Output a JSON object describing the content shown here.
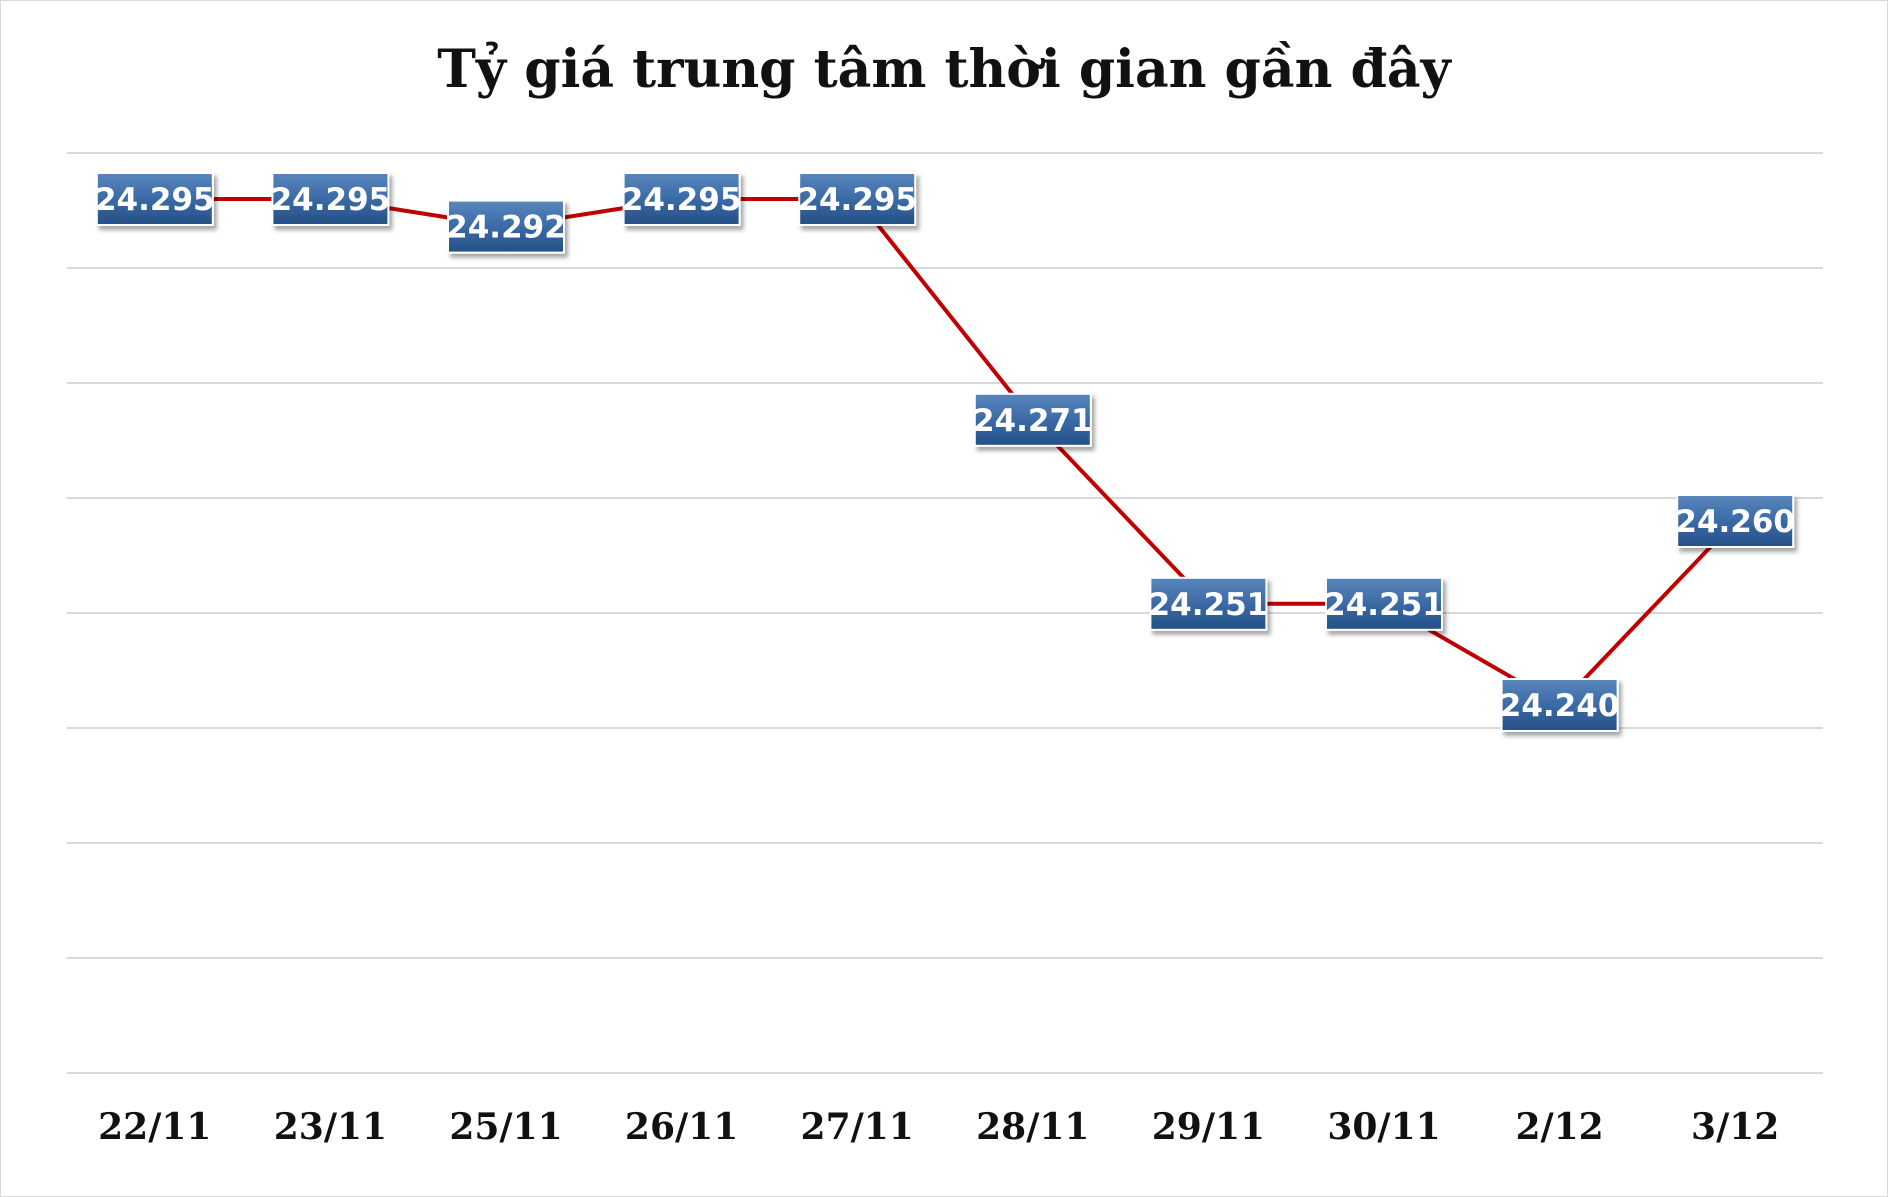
{
  "chart_data": {
    "type": "line",
    "title": "Tỷ giá trung tâm thời gian gần đây",
    "categories": [
      "22/11",
      "23/11",
      "25/11",
      "26/11",
      "27/11",
      "28/11",
      "29/11",
      "30/11",
      "2/12",
      "3/12"
    ],
    "series": [
      {
        "values": [
          24295,
          24295,
          24292,
          24295,
          24295,
          24271,
          24251,
          24251,
          24240,
          24260
        ],
        "labels": [
          "24.295",
          "24.295",
          "24.292",
          "24.295",
          "24.295",
          "24.271",
          "24.251",
          "24.251",
          "24.240",
          "24.260"
        ]
      }
    ],
    "xlabel": "",
    "ylabel": "",
    "ylim": [
      24200,
      24300
    ],
    "grid": true,
    "legend": "none",
    "line_color": "#c00000",
    "label_color": "#2f5d94"
  }
}
